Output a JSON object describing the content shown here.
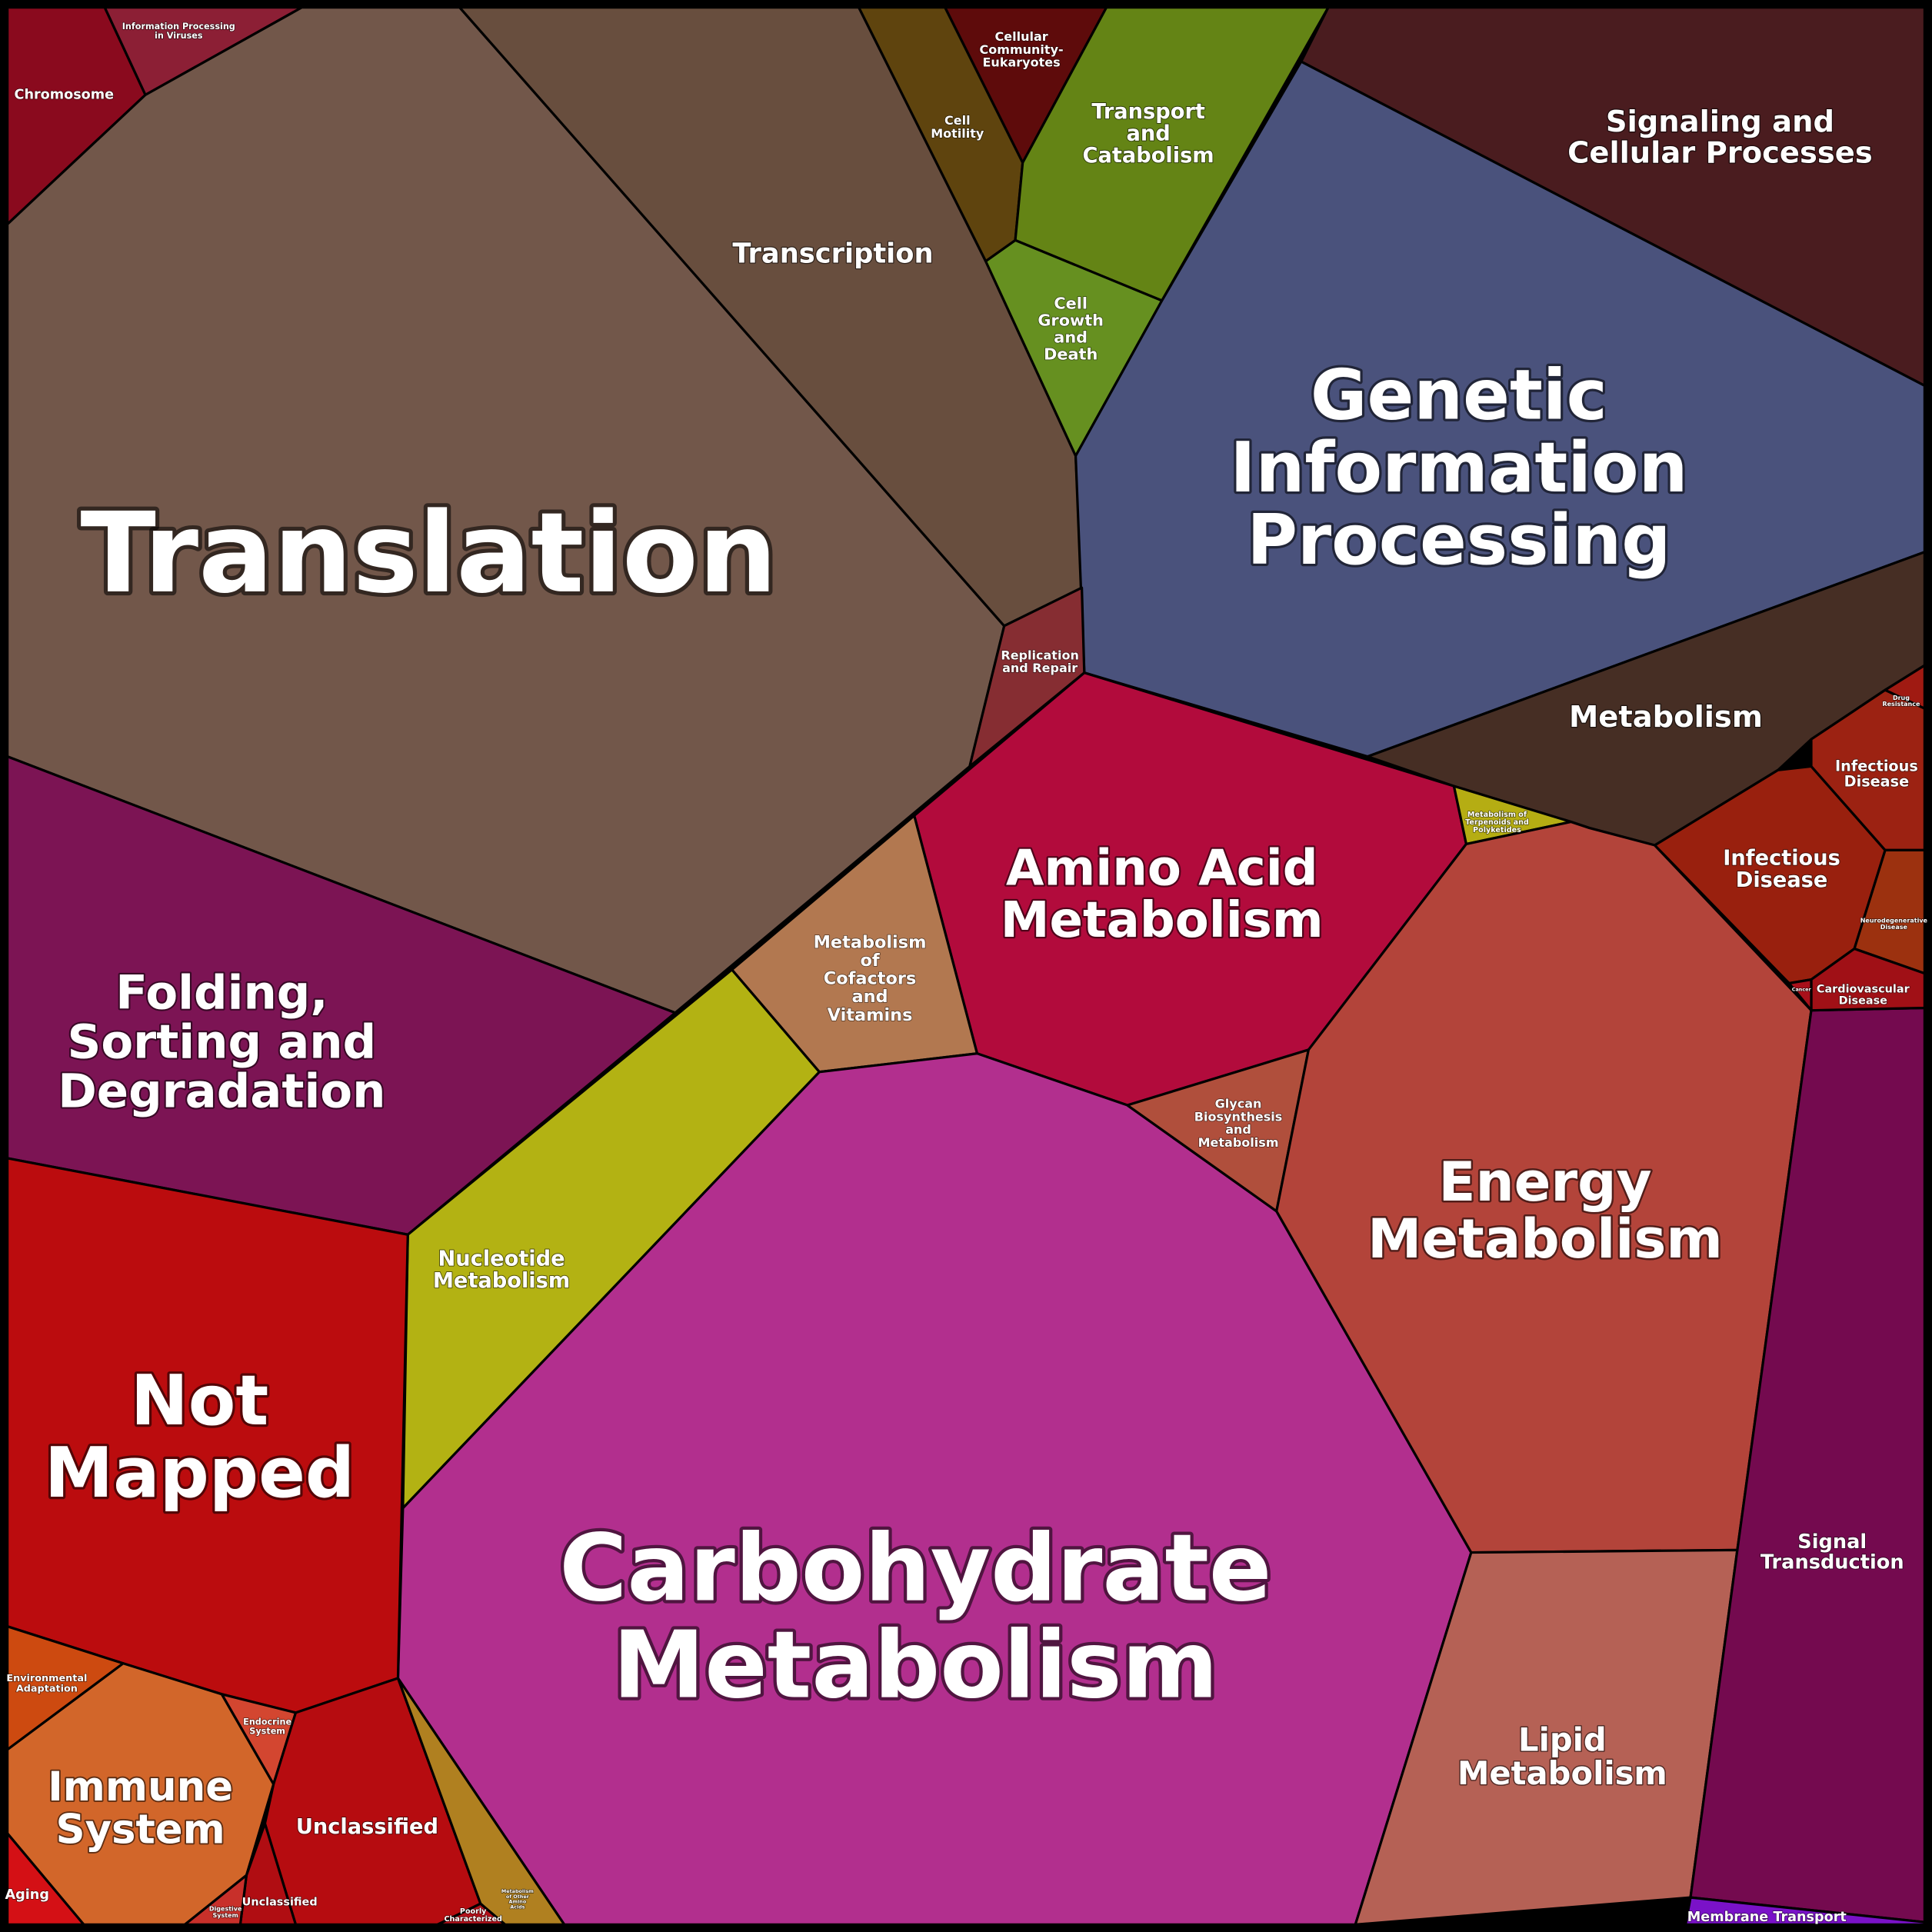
{
  "nodes": [
    {
      "label": [
        "Chromosome"
      ]
    },
    {
      "label": [
        "Information Processing",
        "in Viruses"
      ]
    },
    {
      "label": [
        "Translation"
      ]
    },
    {
      "label": [
        "Transcription"
      ]
    },
    {
      "label": [
        "Cell",
        "Motility"
      ]
    },
    {
      "label": [
        "Cellular",
        "Community-",
        "Eukaryotes"
      ]
    },
    {
      "label": [
        "Transport",
        "and",
        "Catabolism"
      ]
    },
    {
      "label": [
        "Cell",
        "Growth",
        "and",
        "Death"
      ]
    },
    {
      "label": [
        "Signaling and",
        "Cellular Processes"
      ]
    },
    {
      "label": [
        "Genetic",
        "Information",
        "Processing"
      ]
    },
    {
      "label": [
        "Metabolism"
      ]
    },
    {
      "label": [
        "Replication",
        "and Repair"
      ]
    },
    {
      "label": [
        "Amino Acid",
        "Metabolism"
      ]
    },
    {
      "label": [
        "Metabolism of",
        "Terpenoids and",
        "Polyketides"
      ]
    },
    {
      "label": [
        "Metabolism",
        "of",
        "Cofactors",
        "and",
        "Vitamins"
      ]
    },
    {
      "label": [
        "Folding,",
        "Sorting and",
        "Degradation"
      ]
    },
    {
      "label": [
        "Nucleotide",
        "Metabolism"
      ]
    },
    {
      "label": [
        "Carbohydrate",
        "Metabolism"
      ]
    },
    {
      "label": [
        "Glycan",
        "Biosynthesis",
        "and",
        "Metabolism"
      ]
    },
    {
      "label": [
        "Energy",
        "Metabolism"
      ]
    },
    {
      "label": [
        "Lipid",
        "Metabolism"
      ]
    },
    {
      "label": [
        "Signal",
        "Transduction"
      ]
    },
    {
      "label": [
        "Membrane Transport"
      ]
    },
    {
      "label": [
        "Infectious",
        "Disease"
      ]
    },
    {
      "label": [
        "Infectious",
        "Disease"
      ]
    },
    {
      "label": [
        "Drug",
        "Resistance"
      ]
    },
    {
      "label": [
        "Neurodegenerative",
        "Disease"
      ]
    },
    {
      "label": [
        "Cardiovascular",
        "Disease"
      ]
    },
    {
      "label": [
        "Cancer"
      ]
    },
    {
      "label": [
        "Not",
        "Mapped"
      ]
    },
    {
      "label": [
        "Environmental",
        "Adaptation"
      ]
    },
    {
      "label": [
        "Immune",
        "System"
      ]
    },
    {
      "label": [
        "Endocrine",
        "System"
      ]
    },
    {
      "label": [
        "Unclassified"
      ]
    },
    {
      "label": [
        "Aging"
      ]
    },
    {
      "label": [
        "Unclassified"
      ]
    },
    {
      "label": [
        "Digestive",
        "System"
      ]
    },
    {
      "label": [
        "Poorly",
        "Characterized"
      ]
    },
    {
      "label": [
        "Metabolism",
        "of Other",
        "Amino",
        "Acids"
      ]
    }
  ]
}
